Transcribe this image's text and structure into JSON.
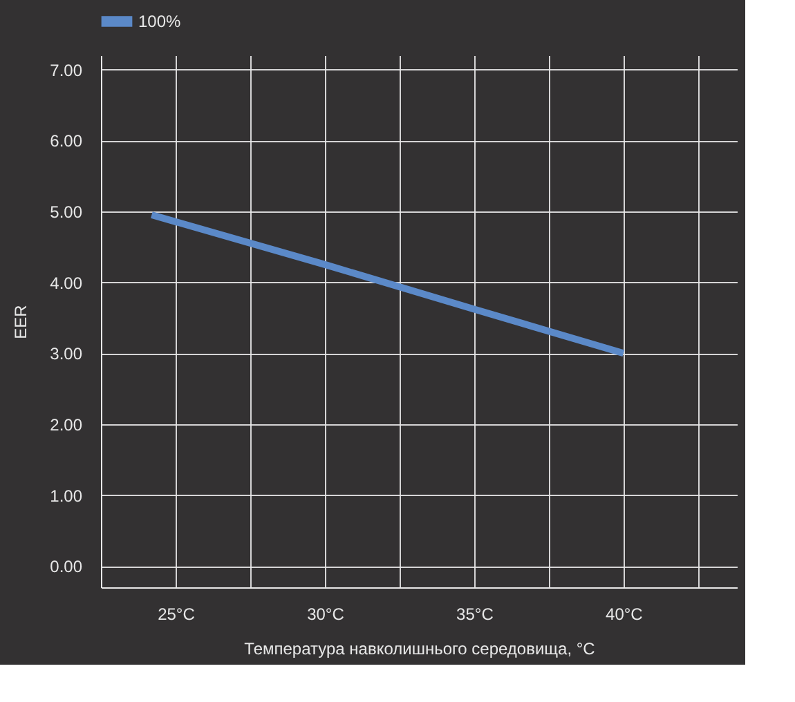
{
  "chart_data": {
    "type": "line",
    "xlabel": "Температура навколишнього середовища, °C",
    "ylabel": "EER",
    "x": [
      24.2,
      30,
      35,
      40
    ],
    "series": [
      {
        "name": "100%",
        "color": "#5b89c8",
        "values": [
          4.95,
          4.25,
          3.62,
          3.0
        ]
      }
    ],
    "xlim": [
      22.5,
      43.8
    ],
    "xticks": [
      {
        "value": 25,
        "label": "25°C"
      },
      {
        "value": 27.5,
        "label": null
      },
      {
        "value": 30,
        "label": "30°C"
      },
      {
        "value": 32.5,
        "label": null
      },
      {
        "value": 35,
        "label": "35°C"
      },
      {
        "value": 37.5,
        "label": null
      },
      {
        "value": 40,
        "label": "40°C"
      },
      {
        "value": 42.5,
        "label": null
      }
    ],
    "ylim": [
      -0.3,
      7.2
    ],
    "yticks": [
      {
        "value": 0,
        "label": "0.00"
      },
      {
        "value": 1,
        "label": "1.00"
      },
      {
        "value": 2,
        "label": "2.00"
      },
      {
        "value": 3,
        "label": "3.00"
      },
      {
        "value": 4,
        "label": "4.00"
      },
      {
        "value": 5,
        "label": "5.00"
      },
      {
        "value": 6,
        "label": "6.00"
      },
      {
        "value": 7,
        "label": "7.00"
      }
    ],
    "grid": true,
    "legend": "top",
    "marker": "none",
    "line_style": "solid"
  }
}
